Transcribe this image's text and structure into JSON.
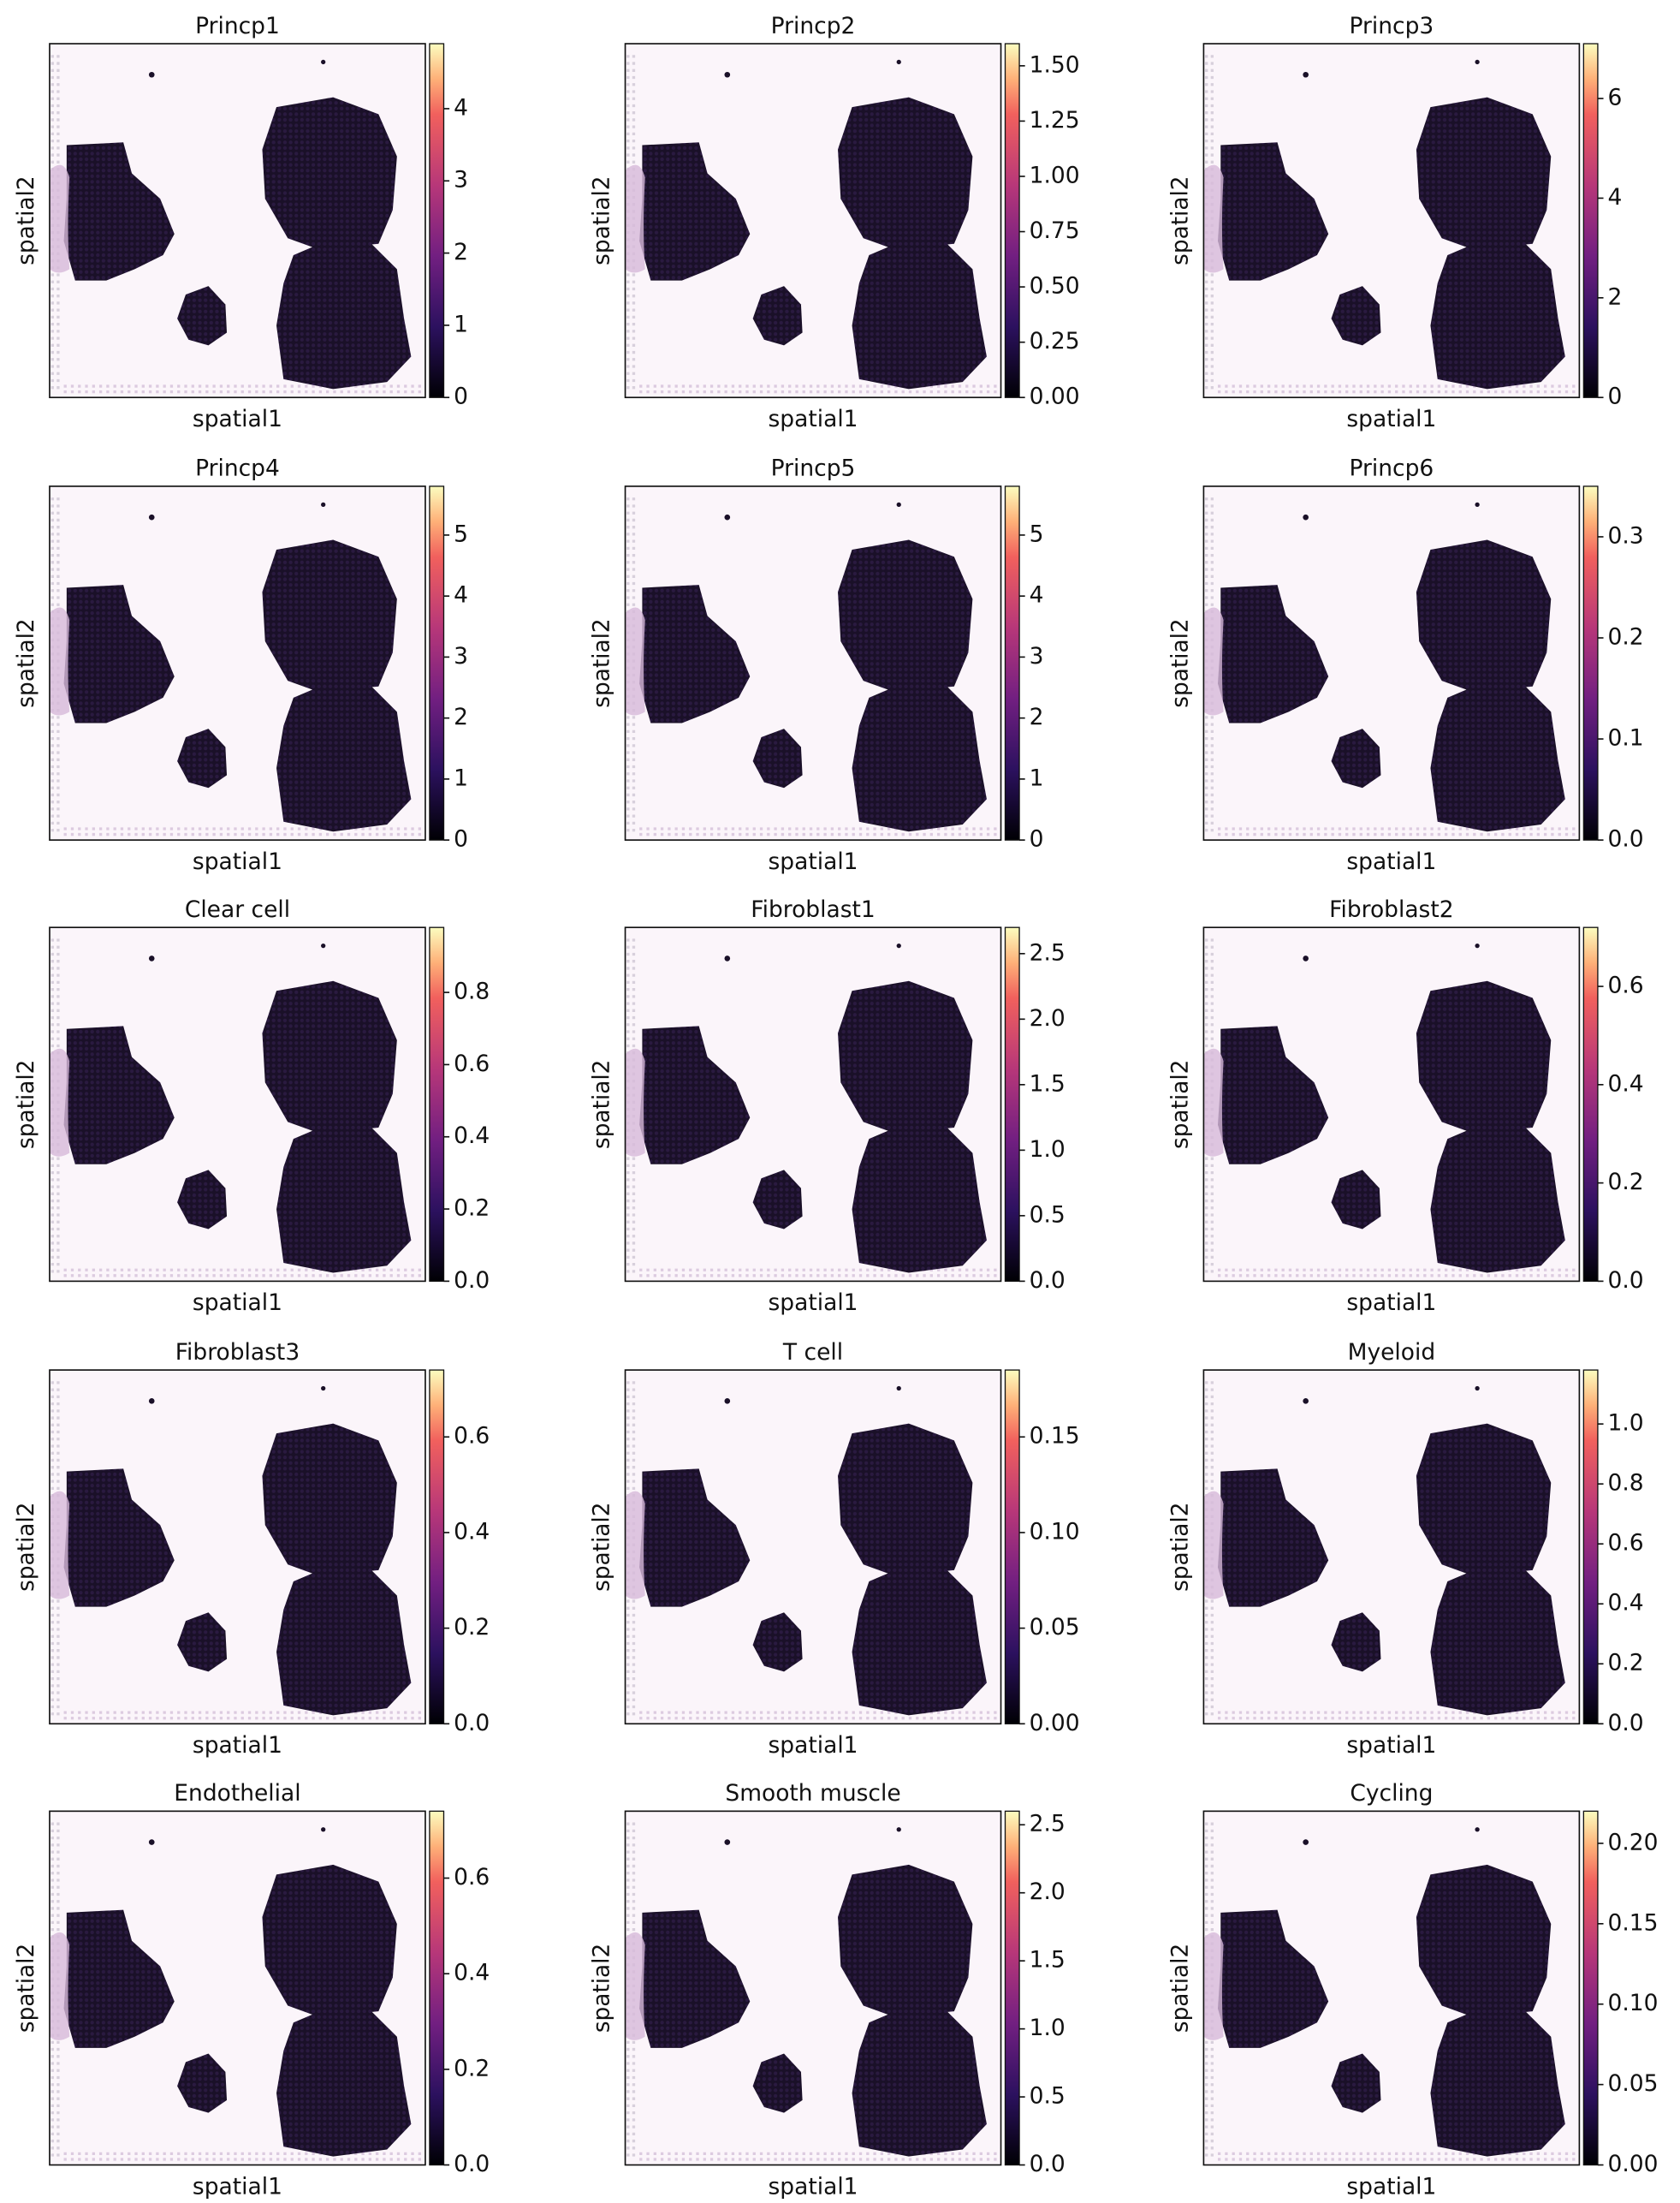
{
  "chart_data": [
    {
      "type": "spatial",
      "title": "Princp1",
      "xlabel": "spatial1",
      "ylabel": "spatial2",
      "clim": [
        0,
        4.9
      ],
      "cticks": [
        0,
        1,
        2,
        3,
        4
      ]
    },
    {
      "type": "spatial",
      "title": "Princp2",
      "xlabel": "spatial1",
      "ylabel": "spatial2",
      "clim": [
        0,
        1.6
      ],
      "cticks": [
        {
          "value": 0,
          "label": "0.00"
        },
        0.25,
        {
          "value": 0.5,
          "label": "0.50"
        },
        0.75,
        {
          "value": 1,
          "label": "1.00"
        },
        1.25,
        {
          "value": 1.5,
          "label": "1.50"
        }
      ]
    },
    {
      "type": "spatial",
      "title": "Princp3",
      "xlabel": "spatial1",
      "ylabel": "spatial2",
      "clim": [
        0,
        7.1
      ],
      "cticks": [
        0,
        2,
        4,
        6
      ]
    },
    {
      "type": "spatial",
      "title": "Princp4",
      "xlabel": "spatial1",
      "ylabel": "spatial2",
      "clim": [
        0,
        5.8
      ],
      "cticks": [
        0,
        1,
        2,
        3,
        4,
        5
      ]
    },
    {
      "type": "spatial",
      "title": "Princp5",
      "xlabel": "spatial1",
      "ylabel": "spatial2",
      "clim": [
        0,
        5.8
      ],
      "cticks": [
        0,
        1,
        2,
        3,
        4,
        5
      ]
    },
    {
      "type": "spatial",
      "title": "Princp6",
      "xlabel": "spatial1",
      "ylabel": "spatial2",
      "clim": [
        0,
        0.35
      ],
      "cticks": [
        {
          "value": 0,
          "label": "0.0"
        },
        0.1,
        0.2,
        0.3
      ]
    },
    {
      "type": "spatial",
      "title": "Clear cell",
      "xlabel": "spatial1",
      "ylabel": "spatial2",
      "clim": [
        0,
        0.98
      ],
      "cticks": [
        {
          "value": 0,
          "label": "0.0"
        },
        0.2,
        0.4,
        0.6,
        0.8
      ]
    },
    {
      "type": "spatial",
      "title": "Fibroblast1",
      "xlabel": "spatial1",
      "ylabel": "spatial2",
      "clim": [
        0,
        2.7
      ],
      "cticks": [
        {
          "value": 0,
          "label": "0.0"
        },
        0.5,
        {
          "value": 1,
          "label": "1.0"
        },
        1.5,
        {
          "value": 2,
          "label": "2.0"
        },
        2.5
      ]
    },
    {
      "type": "spatial",
      "title": "Fibroblast2",
      "xlabel": "spatial1",
      "ylabel": "spatial2",
      "clim": [
        0,
        0.72
      ],
      "cticks": [
        {
          "value": 0,
          "label": "0.0"
        },
        0.2,
        0.4,
        0.6
      ]
    },
    {
      "type": "spatial",
      "title": "Fibroblast3",
      "xlabel": "spatial1",
      "ylabel": "spatial2",
      "clim": [
        0,
        0.74
      ],
      "cticks": [
        {
          "value": 0,
          "label": "0.0"
        },
        0.2,
        0.4,
        0.6
      ]
    },
    {
      "type": "spatial",
      "title": "T cell",
      "xlabel": "spatial1",
      "ylabel": "spatial2",
      "clim": [
        0,
        0.185
      ],
      "cticks": [
        {
          "value": 0,
          "label": "0.00"
        },
        0.05,
        {
          "value": 0.1,
          "label": "0.10"
        },
        0.15
      ]
    },
    {
      "type": "spatial",
      "title": "Myeloid",
      "xlabel": "spatial1",
      "ylabel": "spatial2",
      "clim": [
        0,
        1.18
      ],
      "cticks": [
        {
          "value": 0,
          "label": "0.0"
        },
        0.2,
        0.4,
        0.6,
        0.8,
        {
          "value": 1,
          "label": "1.0"
        }
      ]
    },
    {
      "type": "spatial",
      "title": "Endothelial",
      "xlabel": "spatial1",
      "ylabel": "spatial2",
      "clim": [
        0,
        0.74
      ],
      "cticks": [
        {
          "value": 0,
          "label": "0.0"
        },
        0.2,
        0.4,
        0.6
      ]
    },
    {
      "type": "spatial",
      "title": "Smooth muscle",
      "xlabel": "spatial1",
      "ylabel": "spatial2",
      "clim": [
        0,
        2.6
      ],
      "cticks": [
        {
          "value": 0,
          "label": "0.0"
        },
        0.5,
        {
          "value": 1,
          "label": "1.0"
        },
        1.5,
        {
          "value": 2,
          "label": "2.0"
        },
        2.5
      ]
    },
    {
      "type": "spatial",
      "title": "Cycling",
      "xlabel": "spatial1",
      "ylabel": "spatial2",
      "clim": [
        0,
        0.22
      ],
      "cticks": [
        {
          "value": 0,
          "label": "0.00"
        },
        0.05,
        {
          "value": 0.1,
          "label": "0.10"
        },
        0.15,
        {
          "value": 0.2,
          "label": "0.20"
        }
      ]
    }
  ]
}
